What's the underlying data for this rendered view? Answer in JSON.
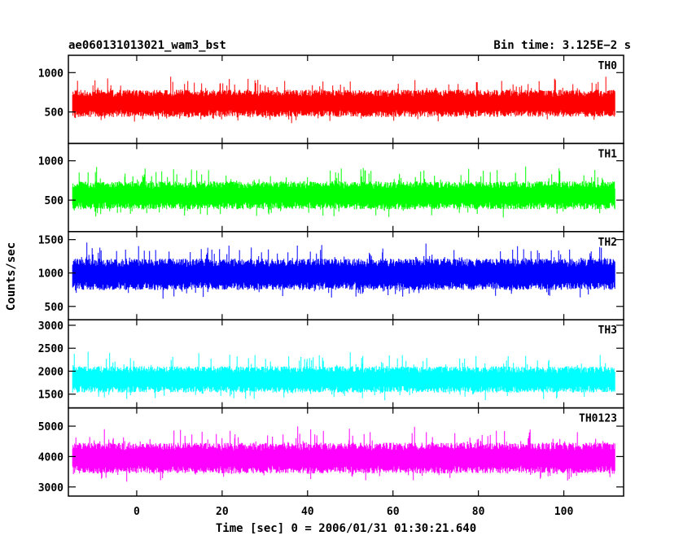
{
  "chart_data": {
    "type": "line",
    "title_left": "ae060131013021_wam3_bst",
    "title_right": "Bin time: 3.125E−2 s",
    "xlabel": "Time [sec] 0 = 2006/01/31 01:30:21.640",
    "ylabel": "Counts/sec",
    "xlim": [
      -16,
      114
    ],
    "x_range_data": [
      -15,
      112
    ],
    "x_ticks": [
      0,
      20,
      40,
      60,
      80,
      100
    ],
    "x_tick_labels": [
      "0",
      "20",
      "40",
      "60",
      "80",
      "100"
    ],
    "panels": [
      {
        "name": "TH0",
        "color": "#ff0000",
        "ylim": [
          100,
          1220
        ],
        "y_ticks": [
          500,
          1000
        ],
        "y_tick_labels": [
          "500",
          "1000"
        ],
        "mean": 610,
        "spread": 150,
        "seed": 11
      },
      {
        "name": "TH1",
        "color": "#00ff00",
        "ylim": [
          100,
          1220
        ],
        "y_ticks": [
          500,
          1000
        ],
        "y_tick_labels": [
          "500",
          "1000"
        ],
        "mean": 560,
        "spread": 155,
        "seed": 23
      },
      {
        "name": "TH2",
        "color": "#0000ff",
        "ylim": [
          300,
          1620
        ],
        "y_ticks": [
          500,
          1000,
          1500
        ],
        "y_tick_labels": [
          "500",
          "1000",
          "1500"
        ],
        "mean": 980,
        "spread": 205,
        "seed": 37
      },
      {
        "name": "TH3",
        "color": "#00ffff",
        "ylim": [
          1200,
          3120
        ],
        "y_ticks": [
          1500,
          2000,
          2500,
          3000
        ],
        "y_tick_labels": [
          "1500",
          "2000",
          "2500",
          "3000"
        ],
        "mean": 1820,
        "spread": 250,
        "seed": 41
      },
      {
        "name": "TH0123",
        "color": "#ff00ff",
        "ylim": [
          2700,
          5600
        ],
        "y_ticks": [
          3000,
          4000,
          5000
        ],
        "y_tick_labels": [
          "3000",
          "4000",
          "5000"
        ],
        "mean": 3950,
        "spread": 440,
        "seed": 53
      }
    ]
  }
}
